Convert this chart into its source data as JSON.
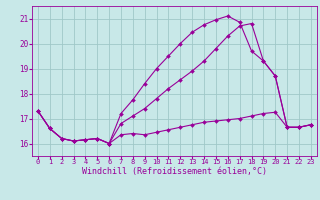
{
  "bg_color": "#c8e8e8",
  "grid_color": "#a0c8c8",
  "line_color": "#990099",
  "marker_color": "#990099",
  "xlabel": "Windchill (Refroidissement éolien,°C)",
  "xlim": [
    -0.5,
    23.5
  ],
  "ylim": [
    15.5,
    21.5
  ],
  "yticks": [
    16,
    17,
    18,
    19,
    20,
    21
  ],
  "xticks": [
    0,
    1,
    2,
    3,
    4,
    5,
    6,
    7,
    8,
    9,
    10,
    11,
    12,
    13,
    14,
    15,
    16,
    17,
    18,
    19,
    20,
    21,
    22,
    23
  ],
  "series1_x": [
    0,
    1,
    2,
    3,
    4,
    5,
    6,
    7,
    8,
    9,
    10,
    11,
    12,
    13,
    14,
    15,
    16,
    17,
    18,
    19,
    20,
    21,
    22,
    23
  ],
  "series1_y": [
    17.3,
    16.6,
    16.2,
    16.1,
    16.15,
    16.2,
    16.0,
    16.35,
    16.4,
    16.35,
    16.45,
    16.55,
    16.65,
    16.75,
    16.85,
    16.9,
    16.95,
    17.0,
    17.1,
    17.2,
    17.25,
    16.65,
    16.65,
    16.75
  ],
  "series2_x": [
    0,
    1,
    2,
    3,
    4,
    5,
    6,
    7,
    8,
    9,
    10,
    11,
    12,
    13,
    14,
    15,
    16,
    17,
    18,
    19,
    20,
    21,
    22,
    23
  ],
  "series2_y": [
    17.3,
    16.6,
    16.2,
    16.1,
    16.15,
    16.2,
    16.0,
    16.8,
    17.1,
    17.4,
    17.8,
    18.2,
    18.55,
    18.9,
    19.3,
    19.8,
    20.3,
    20.7,
    20.8,
    19.3,
    18.7,
    16.65,
    16.65,
    16.75
  ],
  "series3_x": [
    0,
    1,
    2,
    3,
    4,
    5,
    6,
    7,
    8,
    9,
    10,
    11,
    12,
    13,
    14,
    15,
    16,
    17,
    18,
    19,
    20,
    21,
    22,
    23
  ],
  "series3_y": [
    17.3,
    16.6,
    16.2,
    16.1,
    16.15,
    16.2,
    16.0,
    17.2,
    17.75,
    18.4,
    19.0,
    19.5,
    20.0,
    20.45,
    20.75,
    20.95,
    21.1,
    20.85,
    19.7,
    19.3,
    18.7,
    16.65,
    16.65,
    16.75
  ],
  "title_fontsize": 6,
  "tick_fontsize": 5,
  "xlabel_fontsize": 6,
  "linewidth": 0.8,
  "markersize": 2.0
}
